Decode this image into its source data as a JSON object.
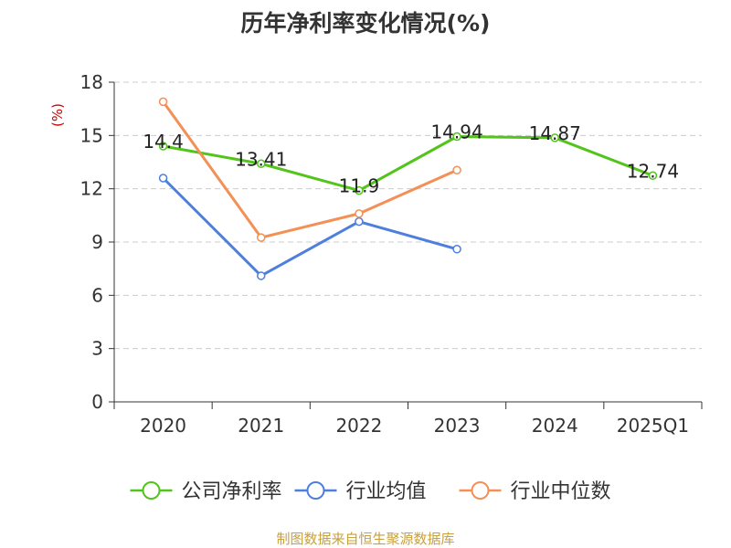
{
  "chart_data": {
    "type": "line",
    "title": "历年净利率变化情况(%)",
    "ylabel": "(%)",
    "categories": [
      "2020",
      "2021",
      "2022",
      "2023",
      "2024",
      "2025Q1"
    ],
    "ylim": [
      0,
      18
    ],
    "yticks": [
      0,
      3,
      6,
      9,
      12,
      15,
      18
    ],
    "grid": true,
    "legend_position": "bottom",
    "series": [
      {
        "name": "公司净利率",
        "color": "#52c41a",
        "values": [
          14.4,
          13.41,
          11.9,
          14.94,
          14.87,
          12.74
        ],
        "labels": [
          "14.4",
          "13.41",
          "11.9",
          "14.94",
          "14.87",
          "12.74"
        ]
      },
      {
        "name": "行业均值",
        "color": "#4e7fdc",
        "values": [
          12.6,
          7.1,
          10.15,
          8.6,
          null,
          null
        ],
        "labels": []
      },
      {
        "name": "行业中位数",
        "color": "#f39055",
        "values": [
          16.9,
          9.25,
          10.6,
          13.05,
          null,
          null
        ],
        "labels": []
      }
    ]
  },
  "source": "制图数据来自恒生聚源数据库"
}
